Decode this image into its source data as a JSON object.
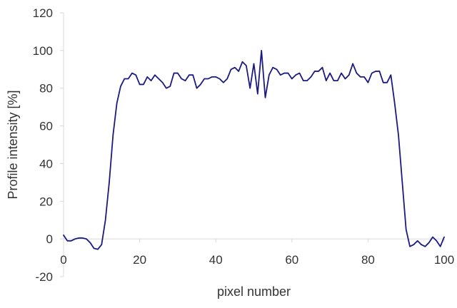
{
  "chart_data": {
    "type": "line",
    "xlabel": "pixel number",
    "ylabel": "Profile intensity [%]",
    "xlim": [
      0,
      100
    ],
    "ylim": [
      -20,
      120
    ],
    "x_ticks": [
      0,
      20,
      40,
      60,
      80,
      100
    ],
    "y_ticks": [
      -20,
      0,
      20,
      40,
      60,
      80,
      100,
      120
    ],
    "grid": false,
    "colors": {
      "line": "#1a1a80",
      "axis": "#d9d9d9",
      "text": "#333333"
    },
    "series": [
      {
        "x": [
          0,
          1,
          2,
          3,
          4,
          5,
          6,
          7,
          8,
          9,
          10,
          11,
          12,
          13,
          14,
          15,
          16,
          17,
          18,
          19,
          20,
          21,
          22,
          23,
          24,
          25,
          26,
          27,
          28,
          29,
          30,
          31,
          32,
          33,
          34,
          35,
          36,
          37,
          38,
          39,
          40,
          41,
          42,
          43,
          44,
          45,
          46,
          47,
          48,
          49,
          50,
          51,
          52,
          53,
          54,
          55,
          56,
          57,
          58,
          59,
          60,
          61,
          62,
          63,
          64,
          65,
          66,
          67,
          68,
          69,
          70,
          71,
          72,
          73,
          74,
          75,
          76,
          77,
          78,
          79,
          80,
          81,
          82,
          83,
          84,
          85,
          86,
          87,
          88,
          89,
          90,
          91,
          92,
          93,
          94,
          95,
          96,
          97,
          98,
          99,
          100
        ],
        "y": [
          2,
          -1,
          -1,
          0,
          0.5,
          0.5,
          0,
          -2,
          -5,
          -5.5,
          -3,
          10,
          30,
          55,
          72,
          81,
          85,
          85,
          88,
          87,
          82,
          82,
          86,
          84,
          87,
          85,
          83,
          80,
          81,
          88,
          88,
          85,
          84,
          87,
          87,
          80,
          82,
          85,
          85,
          86,
          86,
          85,
          83,
          85,
          90,
          91,
          89,
          94,
          92,
          80,
          93,
          77,
          100,
          75,
          87,
          91,
          90,
          87,
          88,
          88,
          85,
          87,
          88,
          84,
          84,
          86,
          89,
          89,
          91,
          84,
          88,
          84,
          84,
          88,
          85,
          87,
          93,
          88,
          86,
          86,
          83,
          88,
          89,
          89,
          83,
          83,
          87,
          72,
          55,
          30,
          5,
          -4,
          -3,
          -1,
          -3,
          -4,
          -2,
          1,
          -1,
          -4,
          1
        ]
      }
    ]
  }
}
